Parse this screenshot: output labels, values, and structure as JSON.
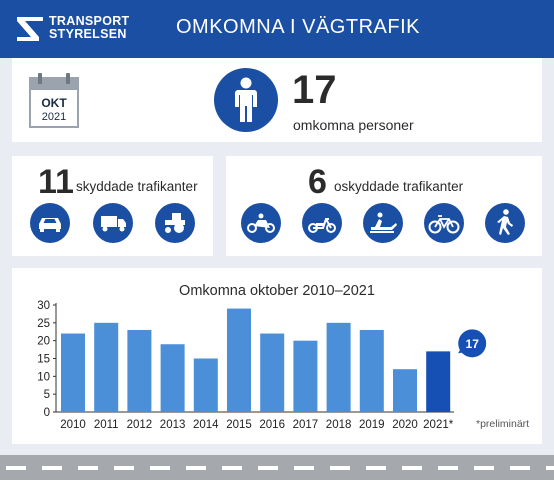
{
  "header": {
    "logo_line1": "TRANSPORT",
    "logo_line2": "STYRELSEN",
    "title": "OMKOMNA I VÄGTRAFIK"
  },
  "date": {
    "month": "OKT",
    "year": "2021"
  },
  "total": {
    "value": "17",
    "label": "omkomna personer"
  },
  "protected": {
    "value": "11",
    "label": "skyddade trafikanter",
    "icons": [
      "car-icon",
      "truck-icon",
      "tractor-icon"
    ]
  },
  "unprotected": {
    "value": "6",
    "label": "oskyddade trafikanter",
    "icons": [
      "motorcycle-icon",
      "moped-icon",
      "snowmobile-icon",
      "bicycle-icon",
      "pedestrian-icon"
    ]
  },
  "colors": {
    "brand": "#1a4fa3",
    "bar": "#4a8fd8",
    "bar_highlight": "#1650b4",
    "background": "#e9edf3"
  },
  "chart_data": {
    "type": "bar",
    "title": "Omkomna oktober 2010–2021",
    "categories": [
      "2010",
      "2011",
      "2012",
      "2013",
      "2014",
      "2015",
      "2016",
      "2017",
      "2018",
      "2019",
      "2020",
      "2021*"
    ],
    "values": [
      22,
      25,
      23,
      19,
      15,
      29,
      22,
      20,
      25,
      23,
      12,
      17
    ],
    "ylim": [
      0,
      30
    ],
    "yticks": [
      0,
      5,
      10,
      15,
      20,
      25,
      30
    ],
    "highlight_index": 11,
    "highlight_label": "17",
    "grid": false,
    "footnote": "*preliminärt"
  }
}
